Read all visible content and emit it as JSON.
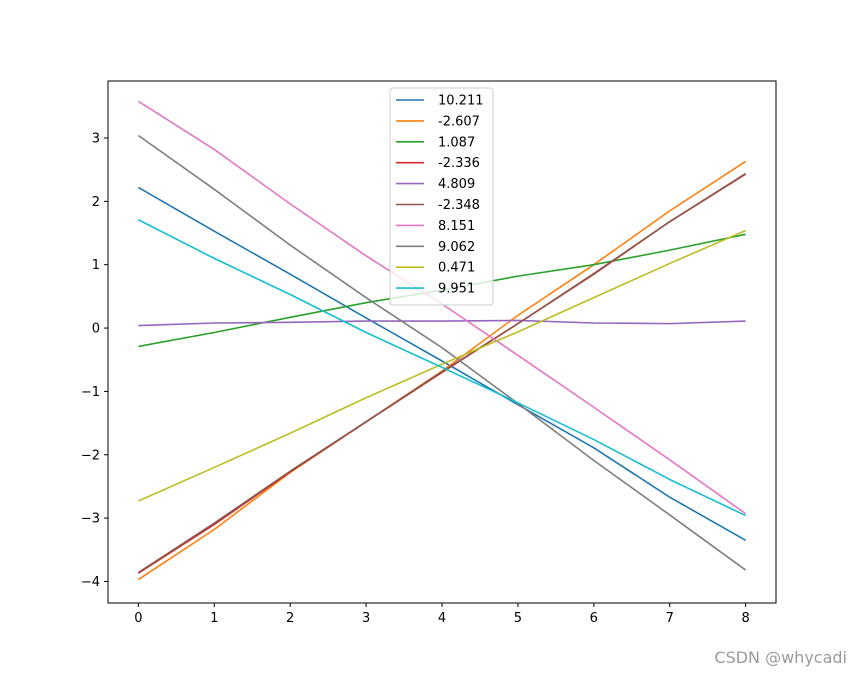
{
  "chart_data": {
    "type": "line",
    "title": "",
    "xlabel": "",
    "ylabel": "",
    "x": [
      0,
      1,
      2,
      3,
      4,
      5,
      6,
      7,
      8
    ],
    "xlim": [
      -0.4,
      8.4
    ],
    "ylim": [
      -4.34,
      3.9
    ],
    "xticks": [
      0,
      1,
      2,
      3,
      4,
      5,
      6,
      7,
      8
    ],
    "yticks": [
      -4,
      -3,
      -2,
      -1,
      0,
      1,
      2,
      3
    ],
    "ytick_labels": [
      "−4",
      "−3",
      "−2",
      "−1",
      "0",
      "1",
      "2",
      "3"
    ],
    "grid": false,
    "legend_position": "upper center",
    "series": [
      {
        "name": "10.211",
        "color": "#1f77b4",
        "values": [
          2.22,
          1.53,
          0.85,
          0.16,
          -0.52,
          -1.21,
          -1.89,
          -2.67,
          -3.35
        ]
      },
      {
        "name": "-2.607",
        "color": "#ff7f0e",
        "values": [
          -3.97,
          -3.18,
          -2.28,
          -1.48,
          -0.68,
          0.2,
          1.0,
          1.85,
          2.63
        ]
      },
      {
        "name": "1.087",
        "color": "#2ca02c",
        "values": [
          -0.29,
          -0.07,
          0.17,
          0.4,
          0.6,
          0.82,
          1.0,
          1.23,
          1.48
        ]
      },
      {
        "name": "-2.336",
        "color": "#d62728",
        "values": [
          -3.87,
          -3.1,
          -2.27,
          -1.48,
          -0.7,
          0.07,
          0.85,
          1.68,
          2.43
        ]
      },
      {
        "name": "4.809",
        "color": "#9467bd",
        "values": [
          0.04,
          0.08,
          0.09,
          0.11,
          0.11,
          0.12,
          0.08,
          0.07,
          0.11
        ]
      },
      {
        "name": "-2.348",
        "color": "#8c564b",
        "values": [
          -3.86,
          -3.08,
          -2.26,
          -1.48,
          -0.69,
          0.07,
          0.86,
          1.68,
          2.44
        ]
      },
      {
        "name": "8.151",
        "color": "#e377c2",
        "values": [
          3.58,
          2.82,
          1.96,
          1.14,
          0.38,
          -0.43,
          -1.25,
          -2.08,
          -2.93
        ]
      },
      {
        "name": "9.062",
        "color": "#7f7f7f",
        "values": [
          3.04,
          2.19,
          1.31,
          0.48,
          -0.31,
          -1.19,
          -2.09,
          -2.95,
          -3.82
        ]
      },
      {
        "name": "0.471",
        "color": "#bcbd22",
        "values": [
          -2.73,
          -2.2,
          -1.66,
          -1.1,
          -0.57,
          -0.06,
          0.48,
          1.02,
          1.54
        ]
      },
      {
        "name": "9.951",
        "color": "#17becf",
        "values": [
          1.71,
          1.1,
          0.53,
          -0.07,
          -0.62,
          -1.18,
          -1.76,
          -2.39,
          -2.96
        ]
      }
    ]
  },
  "watermark": "CSDN @whycadi"
}
